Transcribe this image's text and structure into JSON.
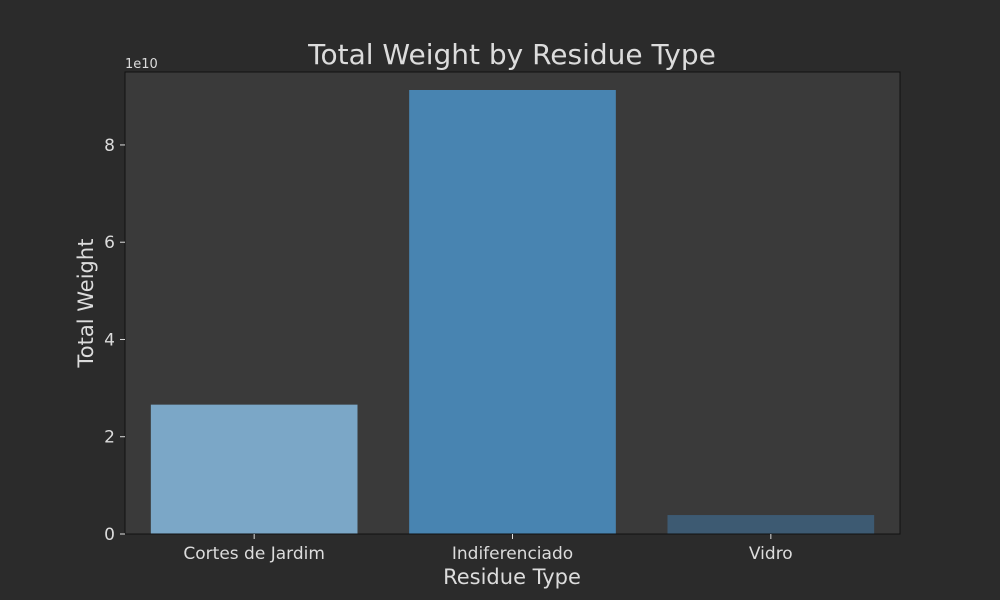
{
  "chart_data": {
    "type": "bar",
    "title": "Total Weight by Residue Type",
    "xlabel": "Residue Type",
    "ylabel": "Total Weight",
    "offset_label": "1e10",
    "categories": [
      "Cortes de Jardim",
      "Indiferenciado",
      "Vidro"
    ],
    "values": [
      26600000000,
      91300000000,
      3900000000
    ],
    "bar_colors": [
      "#7ba7c7",
      "#4884b1",
      "#3d5a72"
    ],
    "ylim": [
      0,
      95000000000
    ],
    "yticks": [
      {
        "value": 0,
        "label": "0"
      },
      {
        "value": 20000000000,
        "label": "2"
      },
      {
        "value": 40000000000,
        "label": "4"
      },
      {
        "value": 60000000000,
        "label": "6"
      },
      {
        "value": 80000000000,
        "label": "8"
      }
    ],
    "grid": false,
    "legend": "none",
    "colors": {
      "background": "#2b2b2b",
      "plot_background": "#3a3a3a",
      "text": "#dcdcdc",
      "axis": "#111111"
    }
  }
}
